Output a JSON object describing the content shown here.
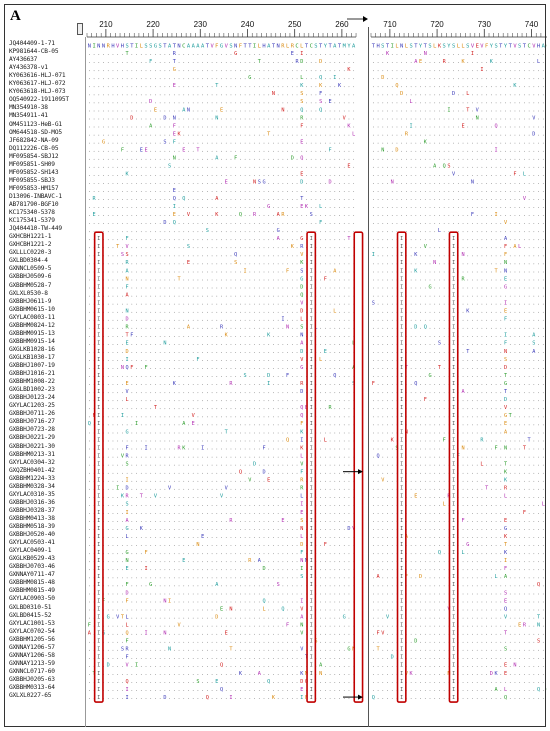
{
  "panel_label": "A",
  "ruler_ticks": [
    {
      "label": "210",
      "block": 0,
      "col": 4
    },
    {
      "label": "220",
      "block": 0,
      "col": 14
    },
    {
      "label": "230",
      "block": 0,
      "col": 24
    },
    {
      "label": "240",
      "block": 0,
      "col": 34
    },
    {
      "label": "250",
      "block": 0,
      "col": 44
    },
    {
      "label": "260",
      "block": 0,
      "col": 54
    },
    {
      "label": "710",
      "block": 1,
      "col": 4
    },
    {
      "label": "720",
      "block": 1,
      "col": 14
    },
    {
      "label": "730",
      "block": 1,
      "col": 24
    },
    {
      "label": "740",
      "block": 1,
      "col": 34
    }
  ],
  "reference_block1": "NINNRHVHSTILSSGSTATNCAAAATVFGVSNFTTILHATNRLRCLTCSTYTATMYA",
  "reference_block2": "THSTILNLSTYTSLKSYSLLSVEVFYSTYTVSTCVHAC",
  "sequences": [
    "JQ404409-1-71",
    "KP981644-CB-05",
    "AY436637",
    "AY436378-v1",
    "KY063616-HLJ-071",
    "KY063617-HLJ-072",
    "KY063618-HLJ-073",
    "OQ540922-1911095T",
    "MN354910-38",
    "MN354911-41",
    "OM451123-HeB-G1",
    "OM644518-SD-MO5",
    "JF682842-NA-09",
    "DQ112226-CB-05",
    "MF095854-SBJ12",
    "MF095851-SH09",
    "MF095852-SH143",
    "MF095855-SBJ3",
    "MF095853-HM157",
    "D13096-INBAVC-1",
    "AB781790-BGF10",
    "KC175340-5378",
    "KC175341-5379",
    "JQ404410-TW-449",
    "GXHCBH1221-1",
    "GXHCBH1221-2",
    "GXLLLC0220-3",
    "GXLBD0304-4",
    "GXNNCL0509-5",
    "GXBBHJ0509-6",
    "GXBBHM0528-7",
    "GXLXL0530-8",
    "GXBBHJ0611-9",
    "GXBBHM0615-10",
    "GXYLAC0803-11",
    "GXBBHM0824-12",
    "GXBBHM0915-13",
    "GXBBHM0915-14",
    "GXGLKB1028-16",
    "GXGLKB1030-17",
    "GXBBHJ1007-19",
    "GXBBHJ1016-21",
    "GXBBHM1008-22",
    "GXGLBD1002-23",
    "GXBBHJ0123-24",
    "GXYLAC1203-25",
    "GXBBHJ0711-26",
    "GXBBHJ0716-27",
    "GXBBHJ0723-28",
    "GXBBHJ0221-29",
    "GXBBHJ0221-30",
    "GXBBHM0213-31",
    "GXYLAC0304-32",
    "GXQZBH0401-42",
    "GXBBHM1224-33",
    "GXBBHM0328-34",
    "GXYLAC0310-35",
    "GXBBHJ0316-36",
    "GXBBHJ0328-37",
    "GXBBHM0413-38",
    "GXBBHM0518-39",
    "GXBBHJ0520-40",
    "GXYLAC0503-41",
    "GXYLAC0409-1",
    "GXGLKB0529-43",
    "GXBBHJ0703-46",
    "GXNNAY0711-47",
    "GXBBHM0815-48",
    "GXBBHM0815-49",
    "GXYLAC0903-50",
    "GXLBD0310-51",
    "GXLBD0415-52",
    "GXYLAC1001-53",
    "GXYLAC0702-54",
    "GXBBHM1205-56",
    "GXNNAY1206-57",
    "GXNNAY1206-58",
    "GXNNAY1213-59",
    "GXNNCL0717-60",
    "GXBBHJ0205-63",
    "GXBBHM0313-64",
    "GXLXL0227-65"
  ],
  "colors": {
    "box": "#c00000",
    "dot": "#555555",
    "aa_blue": "#3a3ab8",
    "aa_green": "#2e9c2e",
    "aa_magenta": "#b02db0",
    "aa_red": "#d02020",
    "aa_orange": "#d98a10",
    "aa_teal": "#1f9c9c"
  }
}
